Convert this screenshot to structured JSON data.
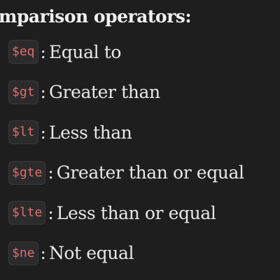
{
  "heading": {
    "text": "mparison operators",
    "colon": ":"
  },
  "operators": [
    {
      "code": "$eq",
      "sep": ":",
      "desc": "Equal to"
    },
    {
      "code": "$gt",
      "sep": ":",
      "desc": "Greater than"
    },
    {
      "code": "$lt",
      "sep": ":",
      "desc": "Less than"
    },
    {
      "code": "$gte",
      "sep": ":",
      "desc": "Greater than or equal"
    },
    {
      "code": "$lte",
      "sep": ":",
      "desc": "Less than or equal"
    },
    {
      "code": "$ne",
      "sep": ":",
      "desc": "Not equal"
    }
  ],
  "colors": {
    "background": "#1e1e1e",
    "text": "#e8e8e8",
    "code_text": "#e06c6c",
    "code_background": "#2b2b2b"
  }
}
